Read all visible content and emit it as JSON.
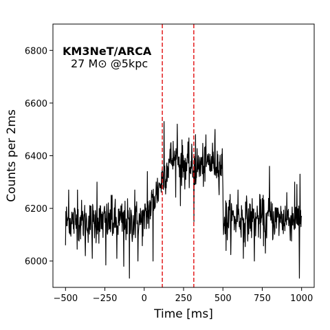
{
  "chart_data": {
    "type": "line",
    "xlabel": "Time [ms]",
    "ylabel": "Counts per 2ms",
    "xlim": [
      -580,
      1080
    ],
    "ylim": [
      5900,
      6900
    ],
    "x_ticks": [
      -500,
      -250,
      0,
      250,
      500,
      750,
      1000
    ],
    "y_ticks": [
      6000,
      6200,
      6400,
      6600,
      6800
    ],
    "x_tick_labels": [
      "−500",
      "−250",
      "0",
      "250",
      "500",
      "750",
      "1000"
    ],
    "y_tick_labels": [
      "6000",
      "6200",
      "6400",
      "6600",
      "6800"
    ],
    "annotation": {
      "title": "KM3NeT/ARCA",
      "subtitle": "27 M⊙ @5kpc"
    },
    "vertical_lines": [
      {
        "x": 115,
        "style": "dashed",
        "color": "#e31a1c"
      },
      {
        "x": 315,
        "style": "dashed",
        "color": "#e31a1c"
      }
    ],
    "series": [
      {
        "x_start": -500,
        "x_step": 2,
        "color": "#000000",
        "baseline_profile": [
          {
            "x": -500,
            "y": 6150
          },
          {
            "x": 0,
            "y": 6150
          },
          {
            "x": 100,
            "y": 6290
          },
          {
            "x": 170,
            "y": 6390
          },
          {
            "x": 315,
            "y": 6350
          },
          {
            "x": 440,
            "y": 6380
          },
          {
            "x": 497,
            "y": 6360
          },
          {
            "x": 503,
            "y": 6160
          },
          {
            "x": 1000,
            "y": 6160
          }
        ],
        "noise_sd": 40,
        "extremes": [
          {
            "x": -500,
            "y": 6060
          },
          {
            "x": -480,
            "y": 6270
          },
          {
            "x": -425,
            "y": 6270
          },
          {
            "x": -375,
            "y": 6020
          },
          {
            "x": -330,
            "y": 6010
          },
          {
            "x": -300,
            "y": 6300
          },
          {
            "x": -245,
            "y": 5985
          },
          {
            "x": -205,
            "y": 6250
          },
          {
            "x": -175,
            "y": 6010
          },
          {
            "x": -130,
            "y": 5980
          },
          {
            "x": -95,
            "y": 5935
          },
          {
            "x": -60,
            "y": 6270
          },
          {
            "x": -40,
            "y": 6000
          },
          {
            "x": 20,
            "y": 6340
          },
          {
            "x": 55,
            "y": 6000
          },
          {
            "x": 125,
            "y": 6530
          },
          {
            "x": 210,
            "y": 6520
          },
          {
            "x": 230,
            "y": 6210
          },
          {
            "x": 315,
            "y": 6150
          },
          {
            "x": 325,
            "y": 6480
          },
          {
            "x": 450,
            "y": 6500
          },
          {
            "x": 520,
            "y": 6040
          },
          {
            "x": 595,
            "y": 6270
          },
          {
            "x": 630,
            "y": 6010
          },
          {
            "x": 700,
            "y": 6000
          },
          {
            "x": 735,
            "y": 6250
          },
          {
            "x": 770,
            "y": 6030
          },
          {
            "x": 795,
            "y": 6360
          },
          {
            "x": 905,
            "y": 6260
          },
          {
            "x": 955,
            "y": 6300
          },
          {
            "x": 985,
            "y": 5935
          },
          {
            "x": 990,
            "y": 6330
          }
        ]
      }
    ]
  }
}
